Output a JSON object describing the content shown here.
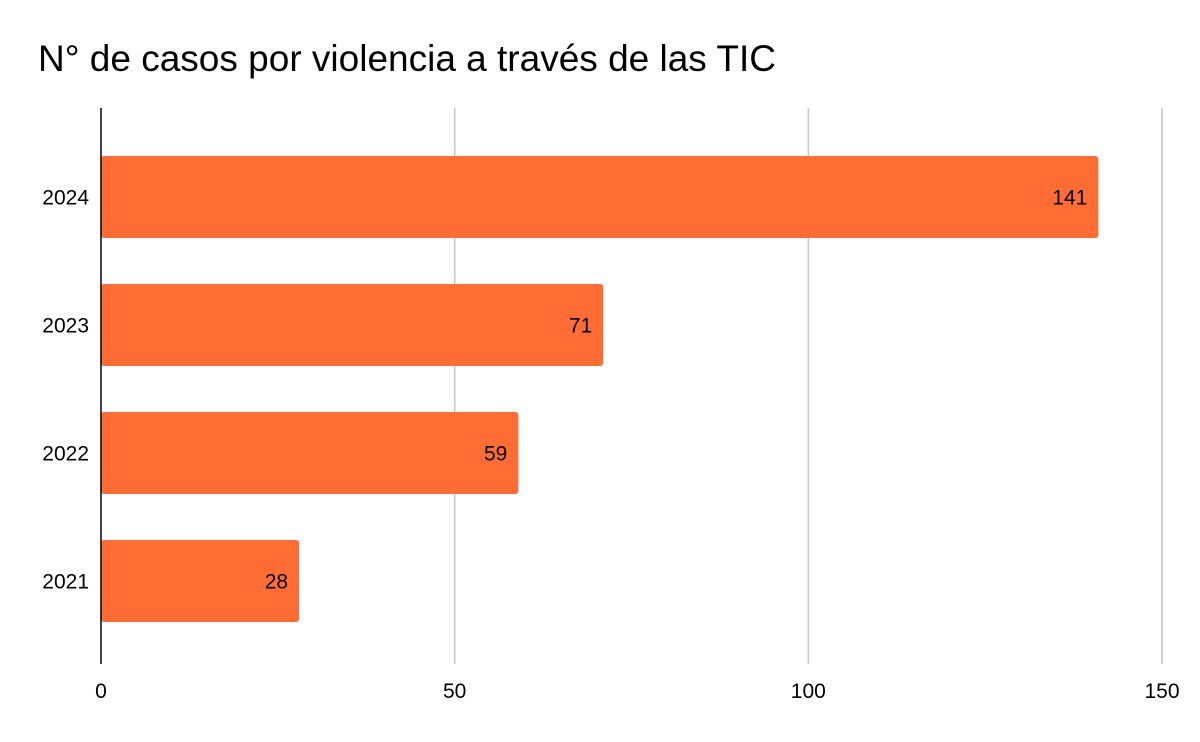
{
  "chart_data": {
    "type": "bar",
    "orientation": "horizontal",
    "title": "N° de casos por violencia a través de las TIC",
    "categories": [
      "2024",
      "2023",
      "2022",
      "2021"
    ],
    "values": [
      141,
      71,
      59,
      28
    ],
    "data_labels": [
      "141",
      "71",
      "59",
      "28"
    ],
    "xlim": [
      0,
      150
    ],
    "x_ticks": [
      0,
      50,
      100,
      150
    ],
    "x_tick_labels": [
      "0",
      "50",
      "100",
      "150"
    ],
    "xlabel": "",
    "ylabel": "",
    "grid": "vertical",
    "legend": "none",
    "colors": {
      "bar": "#ff6d34",
      "grid": "#c6c6c6",
      "axis": "#000000",
      "text": "#000000"
    }
  }
}
